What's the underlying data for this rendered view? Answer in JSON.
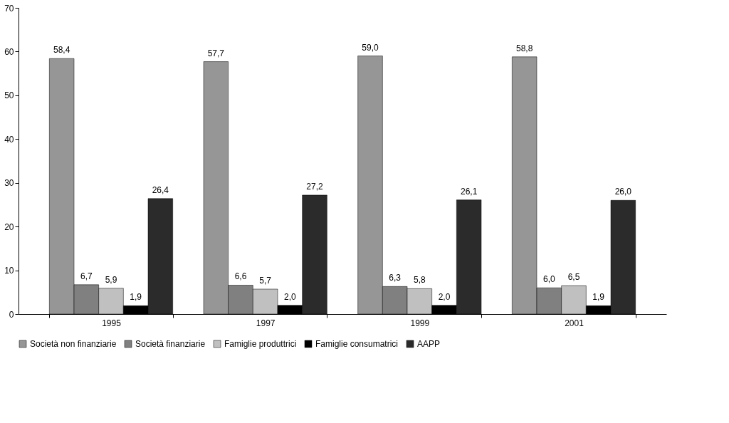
{
  "chart_data": {
    "type": "bar",
    "categories": [
      "1995",
      "1997",
      "1999",
      "2001"
    ],
    "series": [
      {
        "name": "Società non finanziarie",
        "color": "#969696",
        "values": [
          58.4,
          57.7,
          59.0,
          58.8
        ],
        "value_labels": [
          "58,4",
          "57,7",
          "59,0",
          "58,8"
        ]
      },
      {
        "name": "Società finanziarie",
        "color": "#808080",
        "values": [
          6.7,
          6.6,
          6.3,
          6.0
        ],
        "value_labels": [
          "6,7",
          "6,6",
          "6,3",
          "6,0"
        ]
      },
      {
        "name": "Famiglie produttrici",
        "color": "#c0c0c0",
        "values": [
          5.9,
          5.7,
          5.8,
          6.5
        ],
        "value_labels": [
          "5,9",
          "5,7",
          "5,8",
          "6,5"
        ]
      },
      {
        "name": "Famiglie consumatrici",
        "color": "#000000",
        "values": [
          1.9,
          2.0,
          2.0,
          1.9
        ],
        "value_labels": [
          "1,9",
          "2,0",
          "2,0",
          "1,9"
        ]
      },
      {
        "name": "AAPP",
        "color": "#2b2b2b",
        "values": [
          26.4,
          27.2,
          26.1,
          26.0
        ],
        "value_labels": [
          "26,4",
          "27,2",
          "26,1",
          "26,0"
        ]
      }
    ],
    "ylim": [
      0,
      70
    ],
    "yticks": [
      0,
      10,
      20,
      30,
      40,
      50,
      60,
      70
    ],
    "grid": false,
    "legend": "bottom"
  }
}
